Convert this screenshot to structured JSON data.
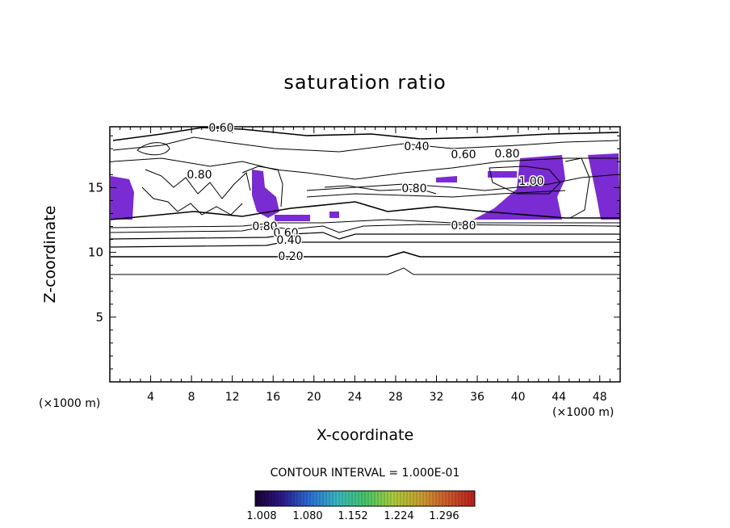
{
  "chart_data": {
    "type": "contour",
    "title": "saturation ratio",
    "xlabel": "X-coordinate",
    "ylabel": "Z-coordinate",
    "x_unit_note": "(×1000 m)",
    "xlim": [
      0,
      50
    ],
    "ylim": [
      0,
      19.7
    ],
    "x_ticks": [
      4,
      8,
      12,
      16,
      20,
      24,
      28,
      32,
      36,
      40,
      44,
      48
    ],
    "y_ticks": [
      5,
      10,
      15
    ],
    "contour_interval": "CONTOUR INTERVAL = 1.000E-01",
    "contour_labels": [
      "0.60",
      "0.40",
      "0.60",
      "0.80",
      "1.00",
      "0.80",
      "0.80",
      "0.80",
      "0.60",
      "0.40",
      "0.20",
      "0.80"
    ],
    "colorbar": {
      "labels": [
        "1.008",
        "1.080",
        "1.152",
        "1.224",
        "1.296"
      ],
      "colors": [
        "#1a0030",
        "#2a1a8a",
        "#2b6fd6",
        "#39b7c0",
        "#44c46a",
        "#a7cc3a",
        "#c8a030",
        "#cc5a2a",
        "#b81e1e"
      ]
    },
    "fill_color": "#7a2bd1",
    "line_color": "#000000"
  }
}
